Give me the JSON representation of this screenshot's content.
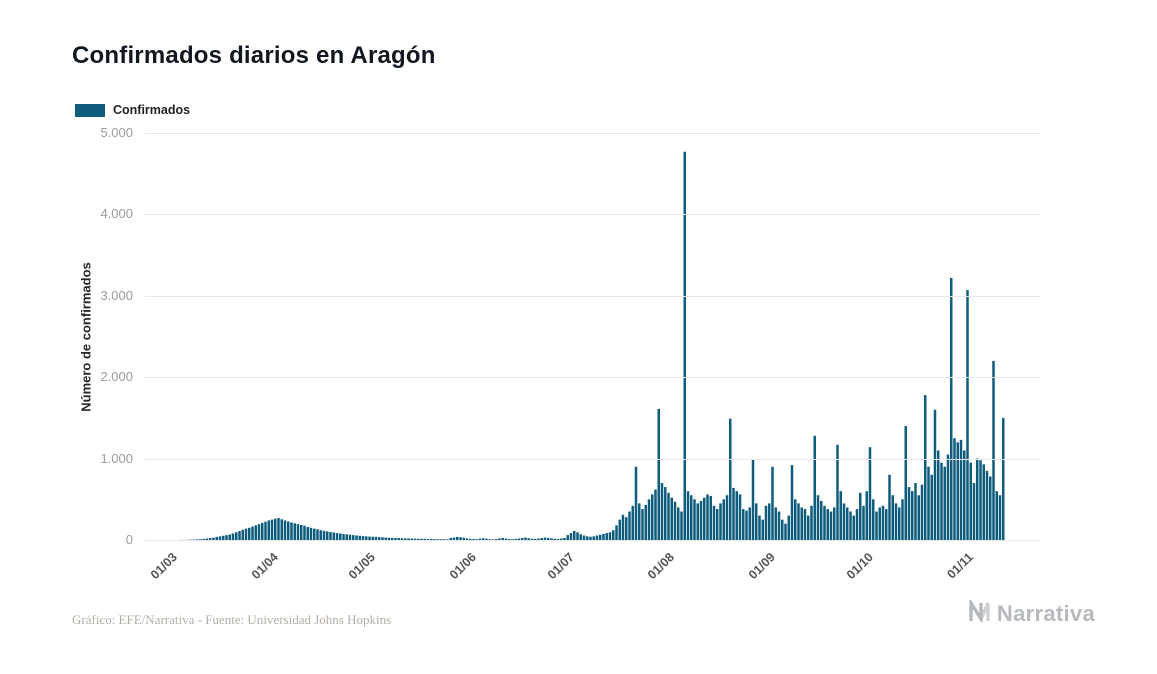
{
  "page": {
    "title": "Confirmados diarios en Aragón",
    "footer_note": "Gráfico: EFE/Narrativa - Fuente: Universidad Johns Hopkins",
    "brand": "Narrativa"
  },
  "legend": {
    "label": "Confirmados"
  },
  "chart_data": {
    "type": "bar",
    "title": "Confirmados diarios en Aragón",
    "series_name": "Confirmados",
    "xlabel": "",
    "ylabel": "Número de confirmados",
    "ylim": [
      0,
      5000
    ],
    "grid": true,
    "legend_position": "top-left",
    "bar_color": "#0F5C7D",
    "y_ticks": [
      {
        "value": 0,
        "label": "0"
      },
      {
        "value": 1000,
        "label": "1.000"
      },
      {
        "value": 2000,
        "label": "2.000"
      },
      {
        "value": 3000,
        "label": "3.000"
      },
      {
        "value": 4000,
        "label": "4.000"
      },
      {
        "value": 5000,
        "label": "5.000"
      }
    ],
    "x_ticks": [
      {
        "day_index": 0,
        "label": "01/03"
      },
      {
        "day_index": 31,
        "label": "01/04"
      },
      {
        "day_index": 61,
        "label": "01/05"
      },
      {
        "day_index": 92,
        "label": "01/06"
      },
      {
        "day_index": 122,
        "label": "01/07"
      },
      {
        "day_index": 153,
        "label": "01/08"
      },
      {
        "day_index": 184,
        "label": "01/09"
      },
      {
        "day_index": 214,
        "label": "01/10"
      },
      {
        "day_index": 245,
        "label": "01/11"
      }
    ],
    "values": [
      0,
      0,
      0,
      2,
      1,
      3,
      4,
      6,
      8,
      10,
      14,
      18,
      24,
      30,
      38,
      45,
      52,
      60,
      68,
      80,
      95,
      110,
      125,
      140,
      150,
      165,
      180,
      195,
      210,
      225,
      240,
      250,
      262,
      270,
      255,
      240,
      228,
      215,
      205,
      195,
      185,
      175,
      160,
      150,
      140,
      132,
      120,
      112,
      105,
      98,
      92,
      85,
      80,
      74,
      70,
      65,
      60,
      56,
      52,
      48,
      45,
      42,
      40,
      38,
      35,
      33,
      30,
      28,
      26,
      25,
      24,
      22,
      20,
      19,
      18,
      17,
      16,
      15,
      14,
      13,
      12,
      11,
      10,
      10,
      9,
      9,
      25,
      30,
      38,
      35,
      28,
      20,
      15,
      12,
      10,
      18,
      22,
      15,
      10,
      8,
      12,
      20,
      25,
      18,
      12,
      10,
      14,
      18,
      25,
      30,
      22,
      15,
      12,
      18,
      24,
      30,
      26,
      20,
      15,
      12,
      18,
      25,
      60,
      85,
      110,
      95,
      70,
      55,
      45,
      40,
      45,
      55,
      65,
      75,
      85,
      95,
      120,
      180,
      250,
      310,
      280,
      350,
      420,
      900,
      450,
      380,
      430,
      500,
      560,
      620,
      1610,
      700,
      650,
      580,
      520,
      470,
      400,
      350,
      4770,
      600,
      550,
      500,
      450,
      480,
      520,
      560,
      540,
      420,
      380,
      450,
      500,
      550,
      1490,
      640,
      600,
      560,
      380,
      360,
      400,
      990,
      450,
      300,
      250,
      420,
      450,
      900,
      400,
      350,
      250,
      200,
      300,
      920,
      500,
      450,
      400,
      380,
      300,
      420,
      1280,
      550,
      480,
      420,
      380,
      350,
      400,
      1170,
      600,
      450,
      400,
      350,
      300,
      380,
      580,
      420,
      600,
      1140,
      500,
      350,
      400,
      420,
      380,
      800,
      550,
      450,
      400,
      500,
      1400,
      650,
      600,
      700,
      550,
      680,
      1780,
      900,
      800,
      1600,
      1100,
      950,
      900,
      1050,
      3220,
      1250,
      1200,
      1230,
      1100,
      3070,
      950,
      700,
      1000,
      980,
      930,
      850,
      780,
      2200,
      600,
      550,
      1500
    ]
  }
}
